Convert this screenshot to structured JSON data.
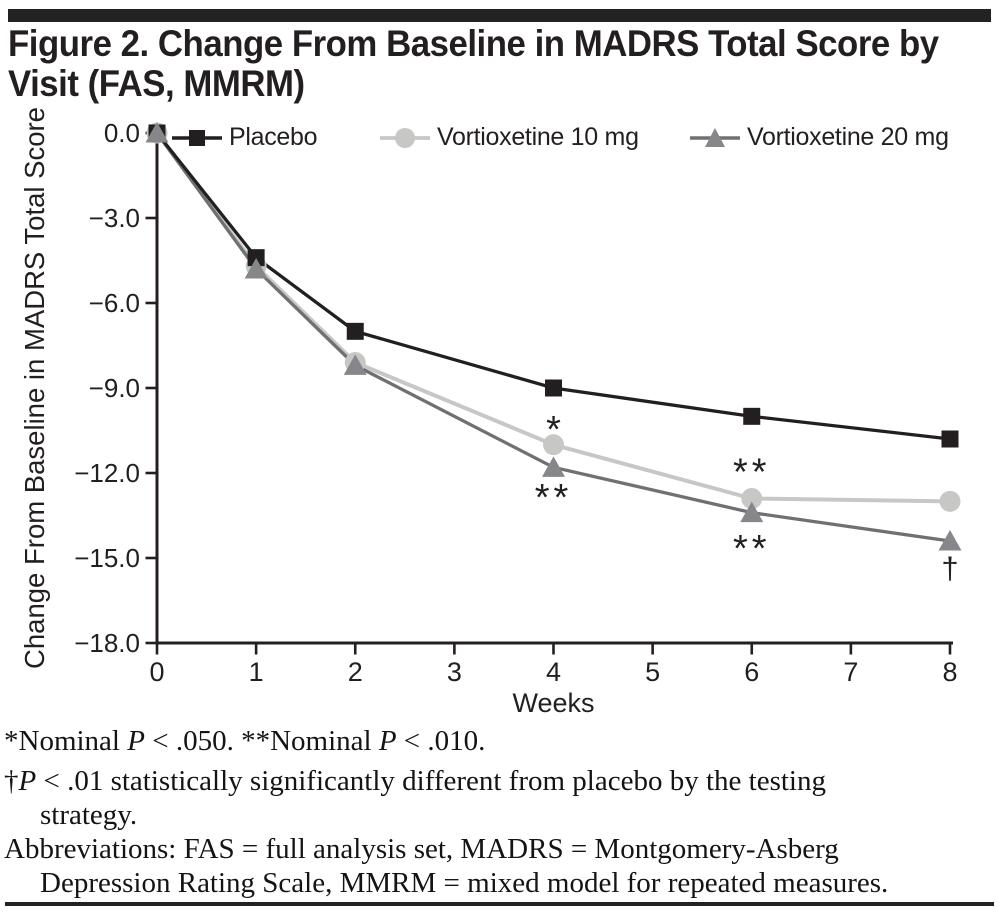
{
  "page": {
    "title_line1": "Figure 2. Change From Baseline in MADRS Total Score by",
    "title_line2": "Visit (FAS, MMRM)"
  },
  "colors": {
    "ink": "#231f20",
    "placebo": "#231f20",
    "vortioxetine_10mg": "#c7c8c6",
    "vortioxetine_20mg_marker": "#85878a",
    "vortioxetine_20mg_line": "#6e7072"
  },
  "legend": {
    "items": [
      {
        "label": "Placebo",
        "marker": "square-icon"
      },
      {
        "label": "Vortioxetine 10 mg",
        "marker": "circle-icon"
      },
      {
        "label": "Vortioxetine 20 mg",
        "marker": "triangle-icon"
      }
    ]
  },
  "chart_data": {
    "type": "line",
    "title": "Figure 2. Change From Baseline in MADRS Total Score by Visit (FAS, MMRM)",
    "xlabel": "Weeks",
    "ylabel": "Change From Baseline in MADRS Total Score",
    "x": [
      0,
      1,
      2,
      4,
      6,
      8
    ],
    "xlim": [
      0,
      8
    ],
    "ylim": [
      -18,
      0
    ],
    "xticks": [
      0,
      1,
      2,
      3,
      4,
      5,
      6,
      7,
      8
    ],
    "xtick_labels": [
      "0",
      "1",
      "2",
      "3",
      "4",
      "5",
      "6",
      "7",
      "8"
    ],
    "yticks": [
      0,
      -3,
      -6,
      -9,
      -12,
      -15,
      -18
    ],
    "ytick_labels": [
      "0.0",
      "−3.0",
      "−6.0",
      "−9.0",
      "−12.0",
      "−15.0",
      "−18.0"
    ],
    "grid": false,
    "legend_position": "top",
    "series": [
      {
        "name": "Placebo",
        "marker": "square",
        "color": "#231f20",
        "line_color": "#231f20",
        "values": [
          0.0,
          -4.4,
          -7.0,
          -9.0,
          -10.0,
          -10.8
        ]
      },
      {
        "name": "Vortioxetine 10 mg",
        "marker": "circle",
        "color": "#c7c8c6",
        "line_color": "#c7c8c6",
        "values": [
          0.0,
          -4.7,
          -8.1,
          -11.0,
          -12.9,
          -13.0
        ]
      },
      {
        "name": "Vortioxetine 20 mg",
        "marker": "triangle",
        "color": "#85878a",
        "line_color": "#6e7072",
        "values": [
          0.0,
          -4.8,
          -8.2,
          -11.8,
          -13.4,
          -14.4
        ]
      }
    ],
    "annotations": [
      {
        "week": 4,
        "value": -10.3,
        "text": "*"
      },
      {
        "week": 4,
        "value": -12.7,
        "text": "**"
      },
      {
        "week": 6,
        "value": -11.8,
        "text": "**"
      },
      {
        "week": 6,
        "value": -14.5,
        "text": "**"
      },
      {
        "week": 8,
        "value": -15.4,
        "text": "†"
      }
    ]
  },
  "footnotes": {
    "lines": [
      {
        "indent": false,
        "gap_after": true,
        "segments": [
          {
            "text": "*Nominal "
          },
          {
            "text": "P",
            "italic": true
          },
          {
            "text": " < .050.  **Nominal "
          },
          {
            "text": "P",
            "italic": true
          },
          {
            "text": " < .010."
          }
        ]
      },
      {
        "indent": false,
        "gap_after": false,
        "segments": [
          {
            "text": "†"
          },
          {
            "text": "P",
            "italic": true
          },
          {
            "text": " < .01 statistically significantly different from placebo by the testing"
          }
        ]
      },
      {
        "indent": true,
        "gap_after": false,
        "segments": [
          {
            "text": "strategy."
          }
        ]
      },
      {
        "indent": false,
        "gap_after": false,
        "segments": [
          {
            "text": "Abbreviations: FAS = full analysis set, MADRS = Montgomery-Asberg"
          }
        ]
      },
      {
        "indent": true,
        "gap_after": false,
        "segments": [
          {
            "text": "Depression Rating Scale, MMRM = mixed model for repeated measures."
          }
        ]
      }
    ]
  }
}
